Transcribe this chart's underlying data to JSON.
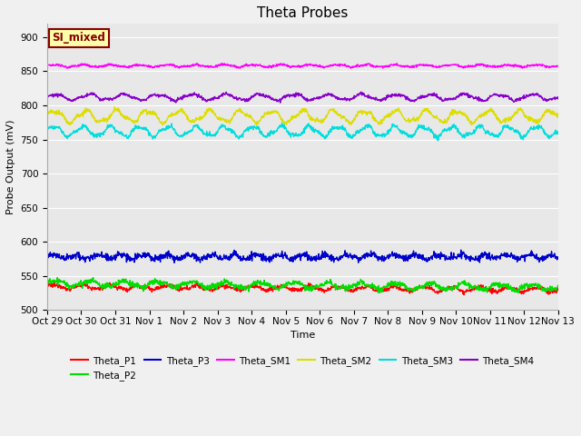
{
  "title": "Theta Probes",
  "ylabel": "Probe Output (mV)",
  "xlabel": "Time",
  "annotation": "SI_mixed",
  "ylim": [
    500,
    920
  ],
  "yticks": [
    500,
    550,
    600,
    650,
    700,
    750,
    800,
    850,
    900
  ],
  "x_labels": [
    "Oct 29",
    "Oct 30",
    "Oct 31",
    "Nov 1",
    "Nov 2",
    "Nov 3",
    "Nov 4",
    "Nov 5",
    "Nov 6",
    "Nov 7",
    "Nov 8",
    "Nov 9",
    "Nov 10",
    "Nov 11",
    "Nov 12",
    "Nov 13"
  ],
  "n_points": 1500,
  "series": [
    {
      "name": "Theta_P1",
      "base": 534,
      "amp": 3,
      "freq": 1.2,
      "color": "#ff0000",
      "noise": 1.5,
      "trend": -0.3
    },
    {
      "name": "Theta_P2",
      "base": 539,
      "amp": 4,
      "freq": 1.0,
      "color": "#00dd00",
      "noise": 2.0,
      "trend": -0.4
    },
    {
      "name": "Theta_P3",
      "base": 578,
      "amp": 3,
      "freq": 1.5,
      "color": "#0000cc",
      "noise": 2.5,
      "trend": 0.0
    },
    {
      "name": "Theta_SM1",
      "base": 858,
      "amp": 1.5,
      "freq": 1.2,
      "color": "#ff00ff",
      "noise": 0.8,
      "trend": 0.0
    },
    {
      "name": "Theta_SM2",
      "base": 784,
      "amp": 8,
      "freq": 1.1,
      "color": "#dddd00",
      "noise": 1.5,
      "trend": 0.0
    },
    {
      "name": "Theta_SM3",
      "base": 762,
      "amp": 7,
      "freq": 1.2,
      "color": "#00dddd",
      "noise": 1.5,
      "trend": 0.0
    },
    {
      "name": "Theta_SM4",
      "base": 812,
      "amp": 4,
      "freq": 1.0,
      "color": "#8800cc",
      "noise": 1.2,
      "trend": 0.0
    }
  ],
  "bg_color": "#e8e8e8",
  "fig_bg": "#f0f0f0",
  "annotation_bg": "#ffffaa",
  "annotation_fg": "#880000",
  "linewidth": 1.0
}
